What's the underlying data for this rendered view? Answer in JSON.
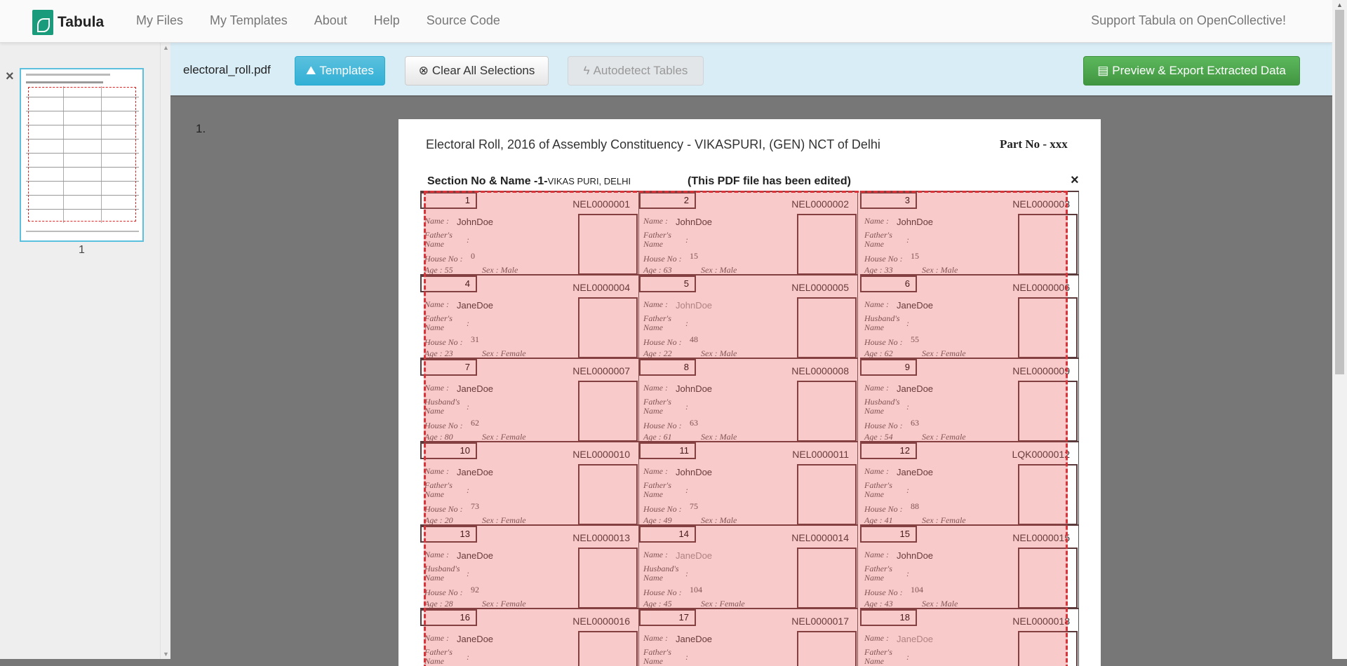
{
  "nav": {
    "brand": "Tabula",
    "links": [
      "My Files",
      "My Templates",
      "About",
      "Help",
      "Source Code"
    ],
    "support": "Support Tabula on OpenCollective!"
  },
  "sidebar": {
    "close_icon": "×",
    "thumbnail_label": "1"
  },
  "toolbar": {
    "filename": "electoral_roll.pdf",
    "templates": "Templates",
    "clear": "Clear All Selections",
    "autodetect": "Autodetect Tables",
    "preview": "Preview & Export Extracted Data"
  },
  "colors": {
    "info": "#5bc0de",
    "success": "#5cb85c",
    "selection": "#d9343a",
    "toolbar_bg": "#d9edf7"
  },
  "page": {
    "number_label": "1.",
    "title": "Electoral Roll, 2016 of Assembly Constituency - VIKASPURI, (GEN) NCT of Delhi",
    "part_no": "Part No - xxx",
    "section_label": "Section No & Name -1-",
    "section_name": "VIKAS PURI, DELHI",
    "edited": "(This PDF file has been edited)",
    "selection_close": "×"
  },
  "labels": {
    "name": "Name :",
    "name_suffix": "Name",
    "father": "Father's",
    "husband": "Husband's",
    "house": "House No :",
    "age": "Age :",
    "sex": "Sex :",
    "colon": ":"
  },
  "voters": [
    {
      "no": "1",
      "id": "NEL0000001",
      "name": "JohnDoe",
      "rel": "father",
      "house": "0",
      "age": "55",
      "sex": "Male"
    },
    {
      "no": "2",
      "id": "NEL0000002",
      "name": "JohnDoe",
      "rel": "father",
      "house": "15",
      "age": "63",
      "sex": "Male"
    },
    {
      "no": "3",
      "id": "NEL0000003",
      "name": "JohnDoe",
      "rel": "father",
      "house": "15",
      "age": "33",
      "sex": "Male"
    },
    {
      "no": "4",
      "id": "NEL0000004",
      "name": "JaneDoe",
      "rel": "father",
      "house": "31",
      "age": "23",
      "sex": "Female"
    },
    {
      "no": "5",
      "id": "NEL0000005",
      "name": "JohnDoe",
      "faded": true,
      "rel": "father",
      "house": "48",
      "age": "22",
      "sex": "Male"
    },
    {
      "no": "6",
      "id": "NEL0000006",
      "name": "JaneDoe",
      "rel": "husband",
      "house": "55",
      "age": "62",
      "sex": "Female"
    },
    {
      "no": "7",
      "id": "NEL0000007",
      "name": "JaneDoe",
      "rel": "husband",
      "house": "62",
      "age": "80",
      "sex": "Female"
    },
    {
      "no": "8",
      "id": "NEL0000008",
      "name": "JohnDoe",
      "rel": "father",
      "house": "63",
      "age": "61",
      "sex": "Male"
    },
    {
      "no": "9",
      "id": "NEL0000009",
      "name": "JaneDoe",
      "rel": "husband",
      "house": "63",
      "age": "54",
      "sex": "Female"
    },
    {
      "no": "10",
      "id": "NEL0000010",
      "name": "JaneDoe",
      "rel": "father",
      "house": "73",
      "age": "20",
      "sex": "Female"
    },
    {
      "no": "11",
      "id": "NEL0000011",
      "name": "JohnDoe",
      "rel": "father",
      "house": "75",
      "age": "49",
      "sex": "Male"
    },
    {
      "no": "12",
      "id": "LQK0000012",
      "name": "JaneDoe",
      "rel": "father",
      "house": "88",
      "age": "41",
      "sex": "Female"
    },
    {
      "no": "13",
      "id": "NEL0000013",
      "name": "JaneDoe",
      "rel": "husband",
      "house": "92",
      "age": "28",
      "sex": "Female"
    },
    {
      "no": "14",
      "id": "NEL0000014",
      "name": "JaneDoe",
      "faded": true,
      "rel": "husband",
      "house": "104",
      "age": "45",
      "sex": "Female"
    },
    {
      "no": "15",
      "id": "NEL0000015",
      "name": "JohnDoe",
      "rel": "father",
      "house": "104",
      "age": "43",
      "sex": "Male"
    },
    {
      "no": "16",
      "id": "NEL0000016",
      "name": "JaneDoe",
      "rel": "father"
    },
    {
      "no": "17",
      "id": "NEL0000017",
      "name": "JaneDoe",
      "rel": "father"
    },
    {
      "no": "18",
      "id": "NEL0000018",
      "name": "JaneDoe",
      "faded": true,
      "rel": "father"
    }
  ]
}
